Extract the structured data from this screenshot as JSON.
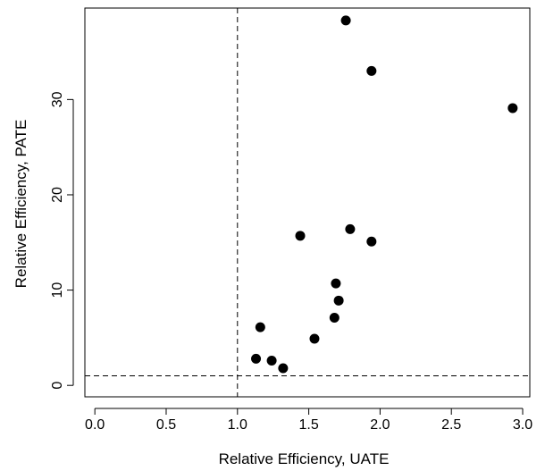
{
  "chart_data": {
    "type": "scatter",
    "title": "",
    "xlabel": "Relative Efficiency, UATE",
    "ylabel": "Relative Efficiency, PATE",
    "xlim": [
      -0.07,
      3.05
    ],
    "ylim": [
      -1.2,
      39.6
    ],
    "x_ticks": [
      0.0,
      0.5,
      1.0,
      1.5,
      2.0,
      2.5,
      3.0
    ],
    "x_tick_labels": [
      "0.0",
      "0.5",
      "1.0",
      "1.5",
      "2.0",
      "2.5",
      "3.0"
    ],
    "y_ticks": [
      0,
      10,
      20,
      30
    ],
    "y_tick_labels": [
      "0",
      "10",
      "20",
      "30"
    ],
    "reference_lines": [
      {
        "orientation": "vertical",
        "value": 1.0,
        "style": "dashed"
      },
      {
        "orientation": "horizontal",
        "value": 1.0,
        "style": "dashed"
      }
    ],
    "grid": false,
    "point_color": "#000000",
    "points": [
      {
        "x": 1.76,
        "y": 38.3
      },
      {
        "x": 1.94,
        "y": 33.0
      },
      {
        "x": 2.93,
        "y": 29.1
      },
      {
        "x": 1.44,
        "y": 15.7
      },
      {
        "x": 1.79,
        "y": 16.4
      },
      {
        "x": 1.94,
        "y": 15.1
      },
      {
        "x": 1.69,
        "y": 10.7
      },
      {
        "x": 1.71,
        "y": 8.9
      },
      {
        "x": 1.68,
        "y": 7.1
      },
      {
        "x": 1.16,
        "y": 6.1
      },
      {
        "x": 1.54,
        "y": 4.9
      },
      {
        "x": 1.13,
        "y": 2.8
      },
      {
        "x": 1.24,
        "y": 2.6
      },
      {
        "x": 1.32,
        "y": 1.8
      }
    ]
  }
}
